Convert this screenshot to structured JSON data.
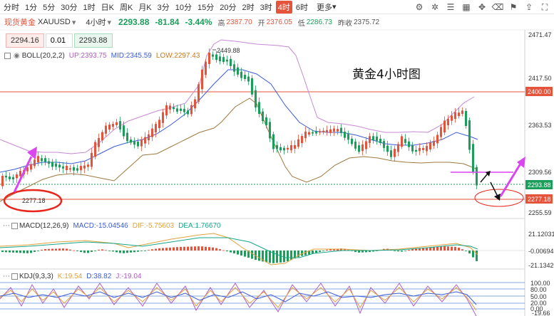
{
  "timeframes": [
    "分时",
    "1分",
    "5分",
    "30分",
    "1时",
    "日K",
    "周K",
    "月K",
    "3分",
    "10分",
    "15分",
    "20分",
    "2时",
    "3时",
    "4时",
    "6时"
  ],
  "active_timeframe": "4时",
  "more_label": "更多",
  "tool_icons": [
    "settings-icon",
    "gear-icon",
    "list-icon",
    "grid-icon",
    "drag-icon",
    "eraser-icon",
    "flag-icon",
    "share-icon",
    "expand-icon"
  ],
  "info": {
    "name": "现货黄金",
    "code": "XAUUSD",
    "period": "4小时",
    "price": "2293.88",
    "change": "-81.84",
    "change_pct": "-3.44%",
    "high_label": "高",
    "high": "2387.70",
    "open_label": "开",
    "open": "2376.05",
    "low_label": "低",
    "low": "2286.73",
    "prev_label": "昨收",
    "prev": "2375.72"
  },
  "trade": {
    "sell": "2294.16",
    "qty": "0.01",
    "buy": "2293.88"
  },
  "boll": {
    "label": "BOLL(20,2,2)",
    "up": "UP:2393.75",
    "mid": "MID:2345.59",
    "low": "LOW:2297.43"
  },
  "macd": {
    "label": "MACD(12,26,9)",
    "macd": "MACD:-15.04546",
    "dif": "DIF:-5.75603",
    "dea": "DEA:1.76670"
  },
  "kdj": {
    "label": "KDJ(9,3,3)",
    "k": "K:19.54",
    "d": "D:38.82",
    "j": "J:-19.04"
  },
  "annotation": "黄金4小时图",
  "price_axis": {
    "ticks": [
      "2471.47",
      "2417.50",
      "2363.53",
      "2309.56",
      "2255.59"
    ],
    "current_tag": "2293.88",
    "level_tag_top": "2400.00",
    "level_tag_bottom": "2277.18",
    "high_marker": "2449.88",
    "low_marker": "2277.18"
  },
  "macd_axis": {
    "ticks": [
      "21.12031",
      "-0.00694",
      "-21.13420"
    ]
  },
  "kdj_axis": {
    "ticks": [
      "100.00",
      "80.00",
      "50.00",
      "20.00",
      "0.00",
      "-19.66"
    ]
  },
  "colors": {
    "up": "#e5533b",
    "down": "#1b9e5a",
    "boll_up": "#c888d6",
    "boll_mid": "#3b5bdb",
    "boll_low": "#a0783f",
    "accent": "#e5533b"
  }
}
